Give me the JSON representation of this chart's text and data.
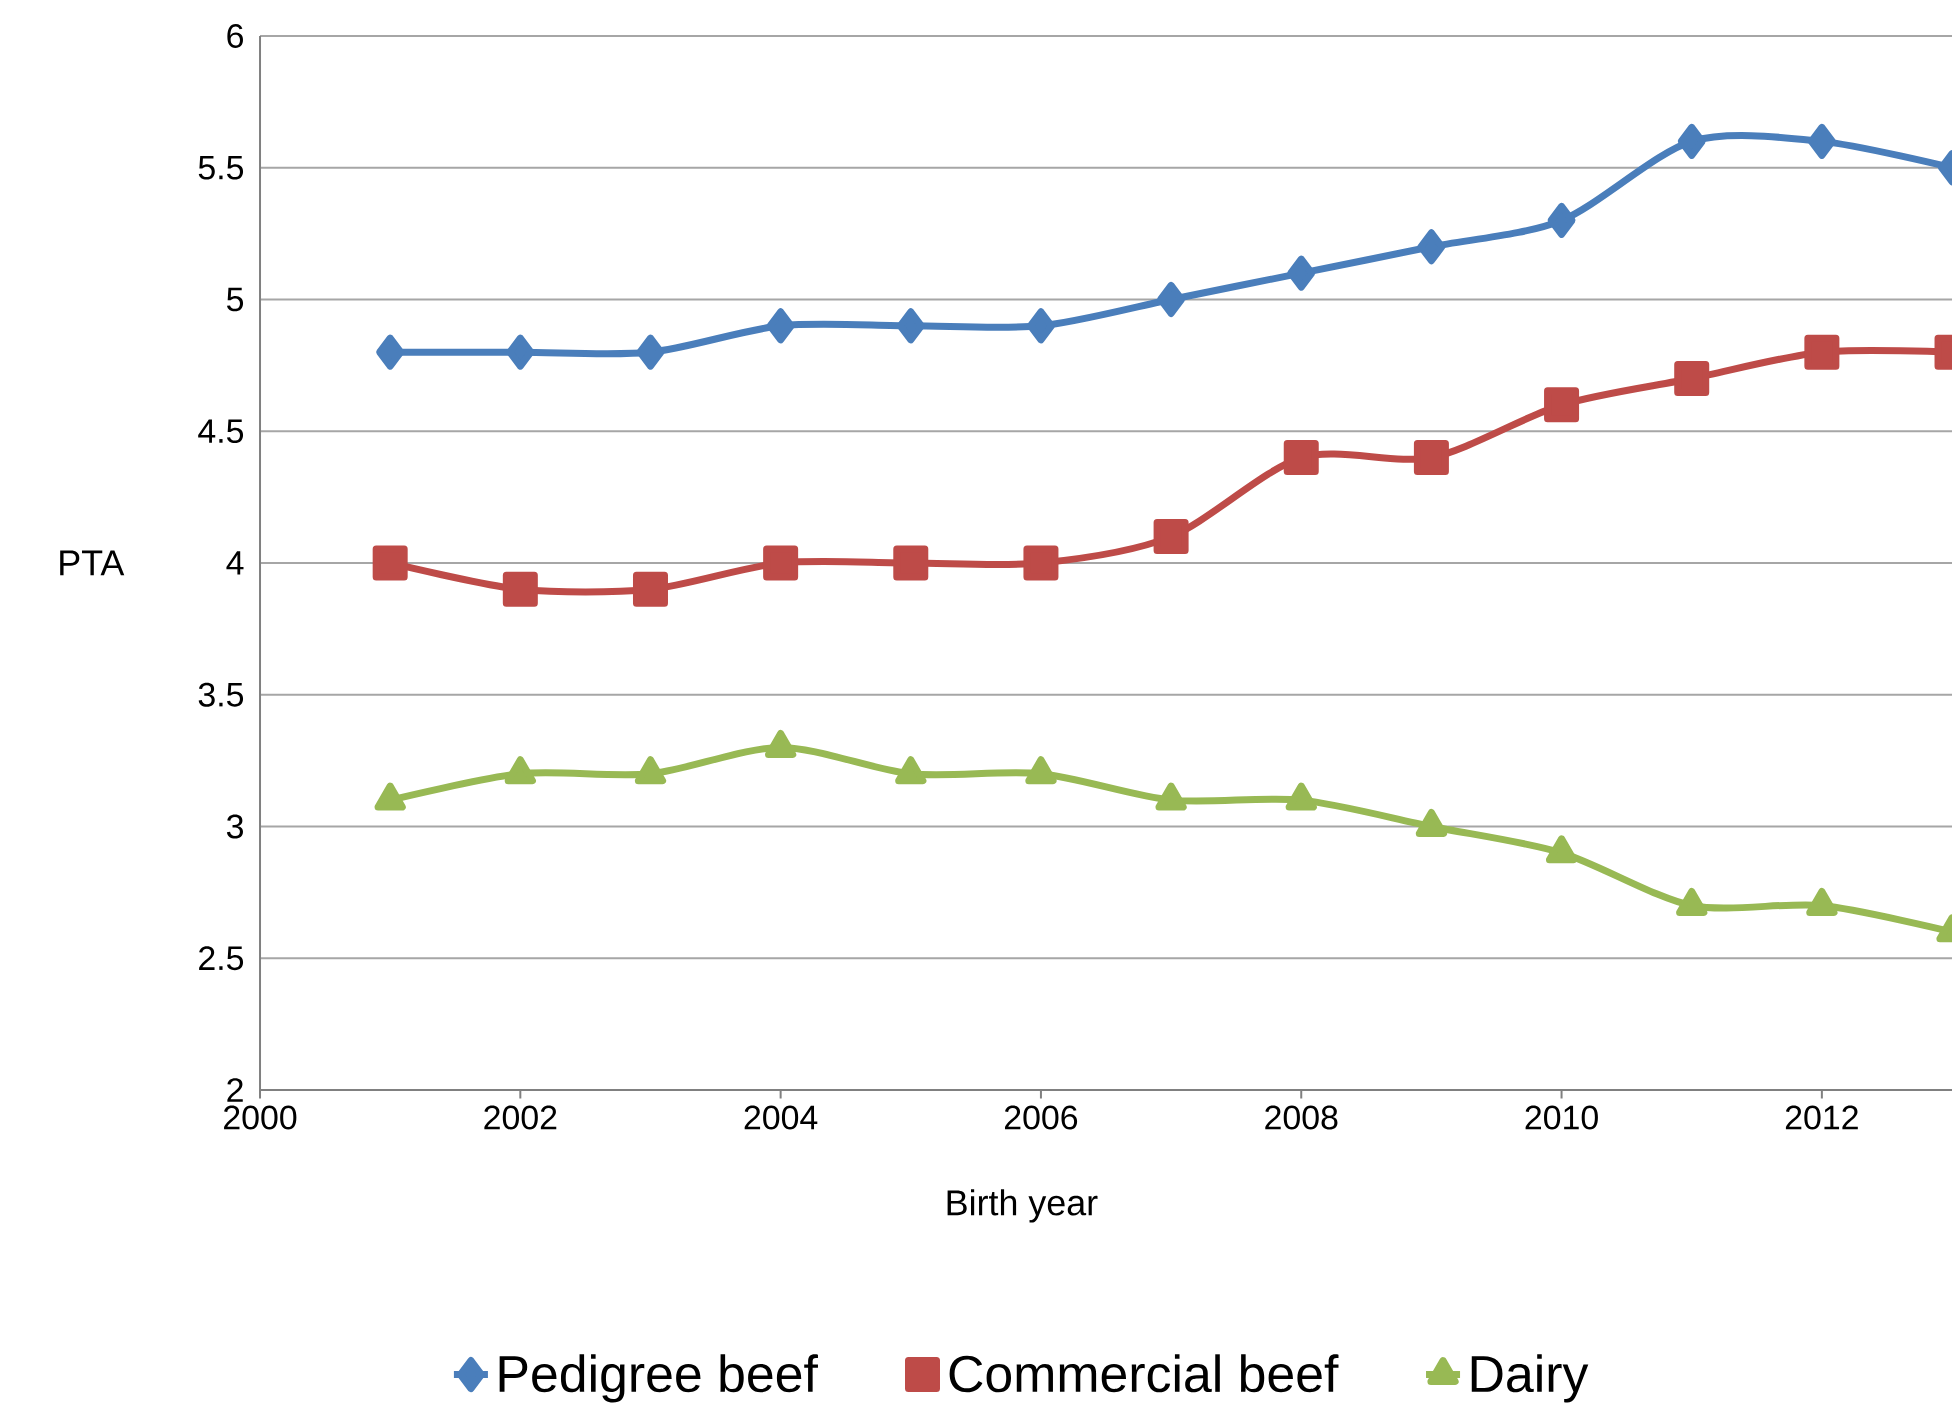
{
  "chart_data": {
    "type": "line",
    "xlabel": "Birth year",
    "ylabel": "PTA",
    "x": [
      2001,
      2002,
      2003,
      2004,
      2005,
      2006,
      2007,
      2008,
      2009,
      2010,
      2011,
      2012,
      2013
    ],
    "series": [
      {
        "name": "Pedigree beef",
        "color": "#4a7ebb",
        "marker": "diamond",
        "values": [
          4.8,
          4.8,
          4.8,
          4.9,
          4.9,
          4.9,
          5.0,
          5.1,
          5.2,
          5.3,
          5.6,
          5.6,
          5.5
        ]
      },
      {
        "name": "Commercial beef",
        "color": "#be4b48",
        "marker": "square",
        "values": [
          4.0,
          3.9,
          3.9,
          4.0,
          4.0,
          4.0,
          4.1,
          4.4,
          4.4,
          4.6,
          4.7,
          4.8,
          4.8
        ]
      },
      {
        "name": "Dairy",
        "color": "#98b954",
        "marker": "triangle",
        "values": [
          3.1,
          3.2,
          3.2,
          3.3,
          3.2,
          3.2,
          3.1,
          3.1,
          3.0,
          2.9,
          2.7,
          2.7,
          2.6
        ]
      }
    ],
    "xlim": [
      2000,
      2013
    ],
    "xticks": [
      2000,
      2002,
      2004,
      2006,
      2008,
      2010,
      2012
    ],
    "ylim": [
      2,
      6
    ],
    "yticks": [
      2,
      2.5,
      3,
      3.5,
      4,
      4.5,
      5,
      5.5,
      6
    ],
    "grid": "y",
    "legend": "bottom",
    "line_style": "solid"
  }
}
